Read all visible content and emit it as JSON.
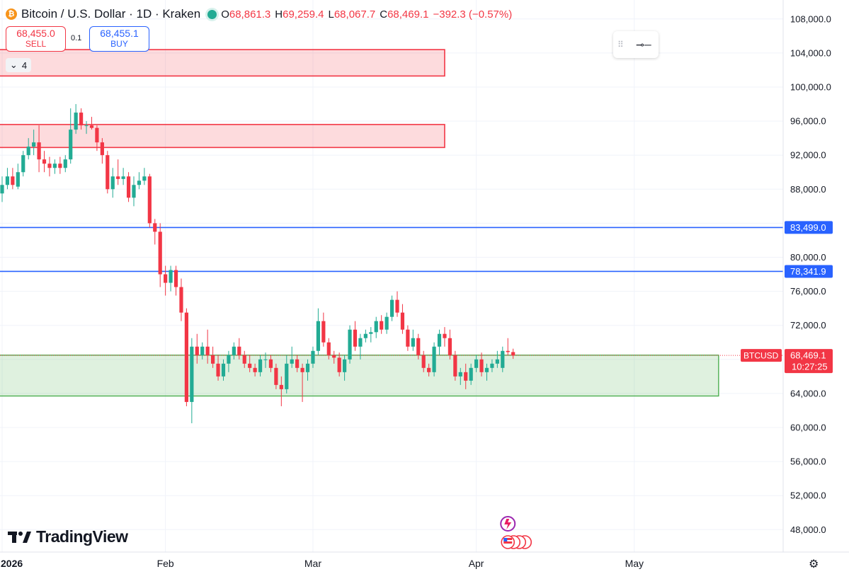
{
  "header": {
    "title": "Bitcoin / U.S. Dollar · 1D · Kraken",
    "coin_glyph": "₿",
    "ohlc": [
      {
        "k": "O",
        "v": "68,861.3"
      },
      {
        "k": "H",
        "v": "69,259.4"
      },
      {
        "k": "L",
        "v": "68,067.7"
      },
      {
        "k": "C",
        "v": "68,469.1"
      },
      {
        "k": "",
        "v": "−392.3 (−0.57%)"
      }
    ]
  },
  "trade": {
    "sell_price": "68,455.0",
    "sell_label": "SELL",
    "spread": "0.1",
    "buy_price": "68,455.1",
    "buy_label": "BUY"
  },
  "collapse": {
    "count": "4"
  },
  "branding": {
    "logo": "TradingView"
  },
  "colors": {
    "up": "#22ab94",
    "down": "#f23645",
    "line": "#2962ff",
    "zone_red": "#f23645",
    "zone_green": "#4caf50"
  },
  "chart_data": {
    "type": "candlestick",
    "symbol": "BTCUSD",
    "ylim": [
      44000,
      110000
    ],
    "y_ticks": [
      {
        "v": 108000,
        "label": "108,000.0"
      },
      {
        "v": 104000,
        "label": "104,000.0"
      },
      {
        "v": 100000,
        "label": "100,000.0"
      },
      {
        "v": 96000,
        "label": "96,000.0"
      },
      {
        "v": 92000,
        "label": "92,000.0"
      },
      {
        "v": 88000,
        "label": "88,000.0"
      },
      {
        "v": 80000,
        "label": "80,000.0"
      },
      {
        "v": 76000,
        "label": "76,000.0"
      },
      {
        "v": 72000,
        "label": "72,000.0"
      },
      {
        "v": 64000,
        "label": "64,000.0"
      },
      {
        "v": 60000,
        "label": "60,000.0"
      },
      {
        "v": 56000,
        "label": "56,000.0"
      },
      {
        "v": 52000,
        "label": "52,000.0"
      },
      {
        "v": 48000,
        "label": "48,000.0"
      }
    ],
    "x_start": "2026-01-01",
    "x_ticks": [
      {
        "date": "2026-01-01",
        "label": "2026"
      },
      {
        "date": "2026-02-01",
        "label": "Feb"
      },
      {
        "date": "2026-03-01",
        "label": "Mar"
      },
      {
        "date": "2026-04-01",
        "label": "Apr"
      },
      {
        "date": "2026-05-01",
        "label": "May"
      }
    ],
    "horizontal_lines": [
      {
        "value": 83499.0,
        "label": "83,499.0"
      },
      {
        "value": 78341.9,
        "label": "78,341.9"
      }
    ],
    "zones": [
      {
        "color": "red",
        "from_date": "2025-12-31",
        "to_date": "2026-03-26",
        "high": 104400,
        "low": 101300
      },
      {
        "color": "red",
        "from_date": "2025-12-31",
        "to_date": "2026-03-26",
        "high": 95600,
        "low": 92900
      },
      {
        "color": "green",
        "from_date": "2025-12-31",
        "to_date": "2026-05-17",
        "high": 68500,
        "low": 63700
      }
    ],
    "last_price": {
      "value": 68469.1,
      "label": "68,469.1",
      "countdown": "10:27:25",
      "tag": "BTCUSD"
    },
    "candles": [
      {
        "d": "2026-01-01",
        "o": 87500,
        "h": 89500,
        "l": 86500,
        "c": 88500
      },
      {
        "d": "2026-01-02",
        "o": 88500,
        "h": 90500,
        "l": 88000,
        "c": 89500
      },
      {
        "d": "2026-01-03",
        "o": 89500,
        "h": 90500,
        "l": 88000,
        "c": 88500
      },
      {
        "d": "2026-01-04",
        "o": 88300,
        "h": 91000,
        "l": 88000,
        "c": 90000
      },
      {
        "d": "2026-01-05",
        "o": 90000,
        "h": 92500,
        "l": 89500,
        "c": 92000
      },
      {
        "d": "2026-01-06",
        "o": 92000,
        "h": 94000,
        "l": 91500,
        "c": 93000
      },
      {
        "d": "2026-01-07",
        "o": 93000,
        "h": 95000,
        "l": 92000,
        "c": 93500
      },
      {
        "d": "2026-01-08",
        "o": 93500,
        "h": 95500,
        "l": 90000,
        "c": 91500
      },
      {
        "d": "2026-01-09",
        "o": 91500,
        "h": 92500,
        "l": 90000,
        "c": 91000
      },
      {
        "d": "2026-01-10",
        "o": 91000,
        "h": 91800,
        "l": 89500,
        "c": 90500
      },
      {
        "d": "2026-01-11",
        "o": 90500,
        "h": 91500,
        "l": 89800,
        "c": 91000
      },
      {
        "d": "2026-01-12",
        "o": 91000,
        "h": 91800,
        "l": 89800,
        "c": 90500
      },
      {
        "d": "2026-01-13",
        "o": 90500,
        "h": 92000,
        "l": 90000,
        "c": 91500
      },
      {
        "d": "2026-01-14",
        "o": 91500,
        "h": 97500,
        "l": 91000,
        "c": 95000
      },
      {
        "d": "2026-01-15",
        "o": 95000,
        "h": 98000,
        "l": 94500,
        "c": 97000
      },
      {
        "d": "2026-01-16",
        "o": 97000,
        "h": 97500,
        "l": 95000,
        "c": 95500
      },
      {
        "d": "2026-01-17",
        "o": 95500,
        "h": 96000,
        "l": 94500,
        "c": 95500
      },
      {
        "d": "2026-01-18",
        "o": 95500,
        "h": 96500,
        "l": 95000,
        "c": 95200
      },
      {
        "d": "2026-01-19",
        "o": 95200,
        "h": 95500,
        "l": 92500,
        "c": 93500
      },
      {
        "d": "2026-01-20",
        "o": 93500,
        "h": 94000,
        "l": 91000,
        "c": 92000
      },
      {
        "d": "2026-01-21",
        "o": 92000,
        "h": 92500,
        "l": 87500,
        "c": 88000
      },
      {
        "d": "2026-01-22",
        "o": 88000,
        "h": 90500,
        "l": 87000,
        "c": 89500
      },
      {
        "d": "2026-01-23",
        "o": 89500,
        "h": 91500,
        "l": 88500,
        "c": 89200
      },
      {
        "d": "2026-01-24",
        "o": 89200,
        "h": 90500,
        "l": 88500,
        "c": 89500
      },
      {
        "d": "2026-01-25",
        "o": 89500,
        "h": 90000,
        "l": 86500,
        "c": 87000
      },
      {
        "d": "2026-01-26",
        "o": 87000,
        "h": 89500,
        "l": 86000,
        "c": 88500
      },
      {
        "d": "2026-01-27",
        "o": 88500,
        "h": 90000,
        "l": 88000,
        "c": 89000
      },
      {
        "d": "2026-01-28",
        "o": 89000,
        "h": 90500,
        "l": 88500,
        "c": 89500
      },
      {
        "d": "2026-01-29",
        "o": 89500,
        "h": 89800,
        "l": 83500,
        "c": 84000
      },
      {
        "d": "2026-01-30",
        "o": 84000,
        "h": 84500,
        "l": 81500,
        "c": 83000
      },
      {
        "d": "2026-01-31",
        "o": 83000,
        "h": 84000,
        "l": 76500,
        "c": 78000
      },
      {
        "d": "2026-02-01",
        "o": 78000,
        "h": 79000,
        "l": 75500,
        "c": 77000
      },
      {
        "d": "2026-02-02",
        "o": 77000,
        "h": 79000,
        "l": 76000,
        "c": 78500
      },
      {
        "d": "2026-02-03",
        "o": 78500,
        "h": 79000,
        "l": 75500,
        "c": 76500
      },
      {
        "d": "2026-02-04",
        "o": 76500,
        "h": 77500,
        "l": 72500,
        "c": 73500
      },
      {
        "d": "2026-02-05",
        "o": 73500,
        "h": 74000,
        "l": 62500,
        "c": 63000
      },
      {
        "d": "2026-02-06",
        "o": 63000,
        "h": 70500,
        "l": 60500,
        "c": 69500
      },
      {
        "d": "2026-02-07",
        "o": 69500,
        "h": 71000,
        "l": 67500,
        "c": 68500
      },
      {
        "d": "2026-02-08",
        "o": 68500,
        "h": 70000,
        "l": 68000,
        "c": 69500
      },
      {
        "d": "2026-02-09",
        "o": 69500,
        "h": 71500,
        "l": 67500,
        "c": 68500
      },
      {
        "d": "2026-02-10",
        "o": 68500,
        "h": 69500,
        "l": 67000,
        "c": 67500
      },
      {
        "d": "2026-02-11",
        "o": 67500,
        "h": 68500,
        "l": 65500,
        "c": 66000
      },
      {
        "d": "2026-02-12",
        "o": 66000,
        "h": 68000,
        "l": 65500,
        "c": 67500
      },
      {
        "d": "2026-02-13",
        "o": 67500,
        "h": 69000,
        "l": 66500,
        "c": 68500
      },
      {
        "d": "2026-02-14",
        "o": 68500,
        "h": 70000,
        "l": 68000,
        "c": 69500
      },
      {
        "d": "2026-02-15",
        "o": 69500,
        "h": 70500,
        "l": 68000,
        "c": 68500
      },
      {
        "d": "2026-02-16",
        "o": 68500,
        "h": 69000,
        "l": 67000,
        "c": 67500
      },
      {
        "d": "2026-02-17",
        "o": 67500,
        "h": 68500,
        "l": 66500,
        "c": 67000
      },
      {
        "d": "2026-02-18",
        "o": 67000,
        "h": 67500,
        "l": 66000,
        "c": 66500
      },
      {
        "d": "2026-02-19",
        "o": 66500,
        "h": 68500,
        "l": 66000,
        "c": 68000
      },
      {
        "d": "2026-02-20",
        "o": 68000,
        "h": 68800,
        "l": 67000,
        "c": 68000
      },
      {
        "d": "2026-02-21",
        "o": 68000,
        "h": 68500,
        "l": 66500,
        "c": 67000
      },
      {
        "d": "2026-02-22",
        "o": 67000,
        "h": 67500,
        "l": 64500,
        "c": 65000
      },
      {
        "d": "2026-02-23",
        "o": 65000,
        "h": 66000,
        "l": 62500,
        "c": 64500
      },
      {
        "d": "2026-02-24",
        "o": 64500,
        "h": 68500,
        "l": 64000,
        "c": 67500
      },
      {
        "d": "2026-02-25",
        "o": 67500,
        "h": 69500,
        "l": 67000,
        "c": 68000
      },
      {
        "d": "2026-02-26",
        "o": 68000,
        "h": 68500,
        "l": 66500,
        "c": 67000
      },
      {
        "d": "2026-02-27",
        "o": 67000,
        "h": 67500,
        "l": 63000,
        "c": 66500
      },
      {
        "d": "2026-02-28",
        "o": 66500,
        "h": 68000,
        "l": 65500,
        "c": 67500
      },
      {
        "d": "2026-03-01",
        "o": 67500,
        "h": 69500,
        "l": 67000,
        "c": 69000
      },
      {
        "d": "2026-03-02",
        "o": 69000,
        "h": 74000,
        "l": 68500,
        "c": 72500
      },
      {
        "d": "2026-03-03",
        "o": 72500,
        "h": 73500,
        "l": 69500,
        "c": 70000
      },
      {
        "d": "2026-03-04",
        "o": 70000,
        "h": 70500,
        "l": 68000,
        "c": 68500
      },
      {
        "d": "2026-03-05",
        "o": 68500,
        "h": 69000,
        "l": 67500,
        "c": 68200
      },
      {
        "d": "2026-03-06",
        "o": 68200,
        "h": 68800,
        "l": 66000,
        "c": 66500
      },
      {
        "d": "2026-03-07",
        "o": 66500,
        "h": 68500,
        "l": 65500,
        "c": 68000
      },
      {
        "d": "2026-03-08",
        "o": 68000,
        "h": 72000,
        "l": 67500,
        "c": 71500
      },
      {
        "d": "2026-03-09",
        "o": 71500,
        "h": 72500,
        "l": 69000,
        "c": 69500
      },
      {
        "d": "2026-03-10",
        "o": 69500,
        "h": 71000,
        "l": 68000,
        "c": 70500
      },
      {
        "d": "2026-03-11",
        "o": 70500,
        "h": 71500,
        "l": 70000,
        "c": 71000
      },
      {
        "d": "2026-03-12",
        "o": 71000,
        "h": 71800,
        "l": 70000,
        "c": 71200
      },
      {
        "d": "2026-03-13",
        "o": 71200,
        "h": 73000,
        "l": 70500,
        "c": 72500
      },
      {
        "d": "2026-03-14",
        "o": 72500,
        "h": 73200,
        "l": 71000,
        "c": 71500
      },
      {
        "d": "2026-03-15",
        "o": 71500,
        "h": 73500,
        "l": 71000,
        "c": 73000
      },
      {
        "d": "2026-03-16",
        "o": 73000,
        "h": 75500,
        "l": 72500,
        "c": 75000
      },
      {
        "d": "2026-03-17",
        "o": 75000,
        "h": 76000,
        "l": 73000,
        "c": 73500
      },
      {
        "d": "2026-03-18",
        "o": 73500,
        "h": 74500,
        "l": 71000,
        "c": 71500
      },
      {
        "d": "2026-03-19",
        "o": 71500,
        "h": 72000,
        "l": 69000,
        "c": 69500
      },
      {
        "d": "2026-03-20",
        "o": 69500,
        "h": 71500,
        "l": 69000,
        "c": 70500
      },
      {
        "d": "2026-03-21",
        "o": 70500,
        "h": 71000,
        "l": 68000,
        "c": 68500
      },
      {
        "d": "2026-03-22",
        "o": 68500,
        "h": 69000,
        "l": 66500,
        "c": 67000
      },
      {
        "d": "2026-03-23",
        "o": 67000,
        "h": 67500,
        "l": 66000,
        "c": 66500
      },
      {
        "d": "2026-03-24",
        "o": 66500,
        "h": 70000,
        "l": 66000,
        "c": 69500
      },
      {
        "d": "2026-03-25",
        "o": 69500,
        "h": 71500,
        "l": 68500,
        "c": 71000
      },
      {
        "d": "2026-03-26",
        "o": 71000,
        "h": 71800,
        "l": 69500,
        "c": 70500
      },
      {
        "d": "2026-03-27",
        "o": 70500,
        "h": 71500,
        "l": 68000,
        "c": 68500
      },
      {
        "d": "2026-03-28",
        "o": 68500,
        "h": 69000,
        "l": 65500,
        "c": 66000
      },
      {
        "d": "2026-03-29",
        "o": 66000,
        "h": 67000,
        "l": 65000,
        "c": 66500
      },
      {
        "d": "2026-03-30",
        "o": 66500,
        "h": 67500,
        "l": 64500,
        "c": 65500
      },
      {
        "d": "2026-03-31",
        "o": 65500,
        "h": 67500,
        "l": 65000,
        "c": 67000
      },
      {
        "d": "2026-04-01",
        "o": 67000,
        "h": 68500,
        "l": 66500,
        "c": 68000
      },
      {
        "d": "2026-04-02",
        "o": 68000,
        "h": 68800,
        "l": 66000,
        "c": 66500
      },
      {
        "d": "2026-04-03",
        "o": 66500,
        "h": 67500,
        "l": 65500,
        "c": 67000
      },
      {
        "d": "2026-04-04",
        "o": 67000,
        "h": 68000,
        "l": 66500,
        "c": 67500
      },
      {
        "d": "2026-04-05",
        "o": 67500,
        "h": 69000,
        "l": 67000,
        "c": 68000
      },
      {
        "d": "2026-04-06",
        "o": 67000,
        "h": 69500,
        "l": 66500,
        "c": 69000
      },
      {
        "d": "2026-04-07",
        "o": 69000,
        "h": 70500,
        "l": 68500,
        "c": 68861
      },
      {
        "d": "2026-04-08",
        "o": 68861.3,
        "h": 69259.4,
        "l": 68067.7,
        "c": 68469.1
      }
    ]
  }
}
